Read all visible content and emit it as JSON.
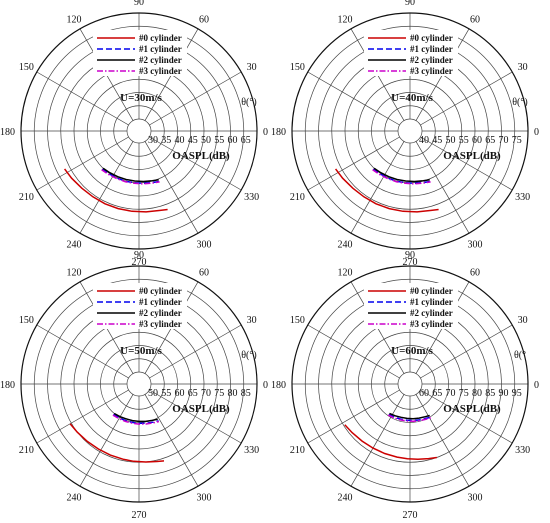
{
  "chart_data": [
    {
      "type": "polar-line",
      "speed_label": "U=30m/s",
      "radial_axis_label": "OASPL(dB)",
      "angle_axis_label": "θ(°)",
      "r_ticks": [
        30,
        35,
        40,
        45,
        50,
        55,
        60,
        65
      ],
      "r_range": [
        30,
        70
      ],
      "theta_ticks": [
        0,
        30,
        60,
        90,
        120,
        150,
        180,
        210,
        240,
        270,
        300,
        330
      ],
      "legend": [
        "#0 cylinder",
        "#1 cylinder",
        "#2 cylinder",
        "#3 cylinder"
      ],
      "series": [
        {
          "name": "#0 cylinder",
          "color": "#cc0000",
          "dash": "solid",
          "theta": [
            207,
            215,
            225,
            235,
            245,
            255,
            265,
            275,
            285,
            290
          ],
          "r": [
            57,
            56.5,
            56,
            55.8,
            55.8,
            55.8,
            55.9,
            56.1,
            56.5,
            57
          ]
        },
        {
          "name": "#1 cylinder",
          "color": "#0000ee",
          "dash": "dashed",
          "theta": [
            226,
            235,
            245,
            255,
            265,
            275,
            285,
            292
          ],
          "r": [
            45.5,
            45.2,
            45.1,
            45.1,
            45.1,
            45.3,
            45.6,
            46
          ]
        },
        {
          "name": "#2 cylinder",
          "color": "#000000",
          "dash": "solid",
          "theta": [
            226,
            235,
            245,
            255,
            265,
            275,
            285,
            292
          ],
          "r": [
            45,
            44.7,
            44.5,
            44.4,
            44.4,
            44.6,
            44.9,
            45.3
          ]
        },
        {
          "name": "#3 cylinder",
          "color": "#cc00cc",
          "dash": "dashdot",
          "theta": [
            226,
            235,
            245,
            255,
            265,
            275,
            285,
            292
          ],
          "r": [
            45.8,
            45.5,
            45.3,
            45.3,
            45.3,
            45.5,
            45.8,
            46.2
          ]
        }
      ]
    },
    {
      "type": "polar-line",
      "speed_label": "U=40m/s",
      "radial_axis_label": "OASPL(dB)",
      "angle_axis_label": "θ(°)",
      "r_ticks": [
        40,
        45,
        50,
        55,
        60,
        65,
        70,
        75
      ],
      "r_range": [
        40,
        80
      ],
      "theta_ticks": [
        0,
        30,
        60,
        90,
        120,
        150,
        180,
        210,
        240,
        270,
        300,
        330
      ],
      "legend": [
        "#0 cylinder",
        "#1 cylinder",
        "#2 cylinder",
        "#3 cylinder"
      ],
      "series": [
        {
          "name": "#0 cylinder",
          "color": "#cc0000",
          "dash": "solid",
          "theta": [
            207,
            215,
            225,
            235,
            245,
            255,
            265,
            275,
            285,
            290
          ],
          "r": [
            67,
            66.5,
            66,
            65.8,
            65.8,
            65.8,
            65.9,
            66.1,
            66.5,
            67
          ]
        },
        {
          "name": "#1 cylinder",
          "color": "#0000ee",
          "dash": "dashed",
          "theta": [
            226,
            235,
            245,
            255,
            265,
            275,
            285,
            292
          ],
          "r": [
            55.5,
            55.2,
            55.1,
            55.1,
            55.1,
            55.3,
            55.6,
            56
          ]
        },
        {
          "name": "#2 cylinder",
          "color": "#000000",
          "dash": "solid",
          "theta": [
            226,
            235,
            245,
            255,
            265,
            275,
            285,
            292
          ],
          "r": [
            55,
            54.7,
            54.5,
            54.4,
            54.4,
            54.6,
            54.9,
            55.3
          ]
        },
        {
          "name": "#3 cylinder",
          "color": "#cc00cc",
          "dash": "dashdot",
          "theta": [
            226,
            235,
            245,
            255,
            265,
            275,
            285,
            292
          ],
          "r": [
            55.8,
            55.5,
            55.3,
            55.3,
            55.3,
            55.5,
            55.8,
            56.2
          ]
        }
      ]
    },
    {
      "type": "polar-line",
      "speed_label": "U=50m/s",
      "radial_axis_label": "OASPL(dB)",
      "angle_axis_label": "θ(°)",
      "r_ticks": [
        50,
        55,
        60,
        65,
        70,
        75,
        80,
        85
      ],
      "r_range": [
        50,
        90
      ],
      "theta_ticks": [
        0,
        30,
        60,
        90,
        120,
        150,
        180,
        210,
        240,
        270,
        300,
        330
      ],
      "legend": [
        "#0 cylinder",
        "#1 cylinder",
        "#2 cylinder",
        "#3 cylinder"
      ],
      "series": [
        {
          "name": "#0 cylinder",
          "color": "#cc0000",
          "dash": "solid",
          "theta": [
            210,
            218,
            228,
            238,
            248,
            258,
            266,
            275,
            283,
            288
          ],
          "r": [
            75.5,
            75,
            74.6,
            74.4,
            74.4,
            74.5,
            74.7,
            75,
            75.5,
            76
          ]
        },
        {
          "name": "#1 cylinder",
          "color": "#0000ee",
          "dash": "dashed",
          "theta": [
            230,
            240,
            250,
            260,
            270,
            280,
            290,
            298
          ],
          "r": [
            60.5,
            60.3,
            60.2,
            60.2,
            60.3,
            60.5,
            60.8,
            61.2
          ]
        },
        {
          "name": "#2 cylinder",
          "color": "#000000",
          "dash": "solid",
          "theta": [
            230,
            240,
            250,
            260,
            270,
            280,
            290,
            298
          ],
          "r": [
            60,
            59.7,
            59.5,
            59.5,
            59.6,
            59.8,
            60.1,
            60.5
          ]
        },
        {
          "name": "#3 cylinder",
          "color": "#cc00cc",
          "dash": "dashdot",
          "theta": [
            230,
            240,
            250,
            260,
            270,
            280,
            290,
            298
          ],
          "r": [
            60.8,
            60.6,
            60.5,
            60.5,
            60.6,
            60.8,
            61.1,
            61.5
          ]
        }
      ]
    },
    {
      "type": "polar-line",
      "speed_label": "U=60m/s",
      "radial_axis_label": "OASPL(dB)",
      "angle_axis_label": "θ(°",
      "r_ticks": [
        60,
        65,
        70,
        75,
        80,
        85,
        90,
        95
      ],
      "r_range": [
        60,
        100
      ],
      "theta_ticks": [
        0,
        30,
        60,
        90,
        120,
        150,
        180,
        210,
        240,
        270,
        300,
        330
      ],
      "legend": [
        "#0 cylinder",
        "#1 cylinder",
        "#2 cylinder",
        "#3 cylinder"
      ],
      "series": [
        {
          "name": "#0 cylinder",
          "color": "#cc0000",
          "dash": "solid",
          "theta": [
            212,
            220,
            230,
            240,
            250,
            260,
            268,
            276,
            284,
            290
          ],
          "r": [
            84.5,
            84,
            83.6,
            83.4,
            83.4,
            83.5,
            83.7,
            84,
            84.5,
            85
          ]
        },
        {
          "name": "#1 cylinder",
          "color": "#0000ee",
          "dash": "dashed",
          "theta": [
            235,
            245,
            255,
            265,
            275,
            285,
            295,
            302
          ],
          "r": [
            69.5,
            69.3,
            69.2,
            69.2,
            69.3,
            69.5,
            69.8,
            70.2
          ]
        },
        {
          "name": "#2 cylinder",
          "color": "#000000",
          "dash": "solid",
          "theta": [
            235,
            245,
            255,
            265,
            275,
            285,
            295,
            302
          ],
          "r": [
            69,
            68.7,
            68.5,
            68.5,
            68.6,
            68.8,
            69.1,
            69.5
          ]
        },
        {
          "name": "#3 cylinder",
          "color": "#cc00cc",
          "dash": "dashdot",
          "theta": [
            235,
            245,
            255,
            265,
            275,
            285,
            295,
            302
          ],
          "r": [
            69.8,
            69.6,
            69.5,
            69.5,
            69.6,
            69.8,
            70.1,
            70.5
          ]
        }
      ]
    }
  ]
}
